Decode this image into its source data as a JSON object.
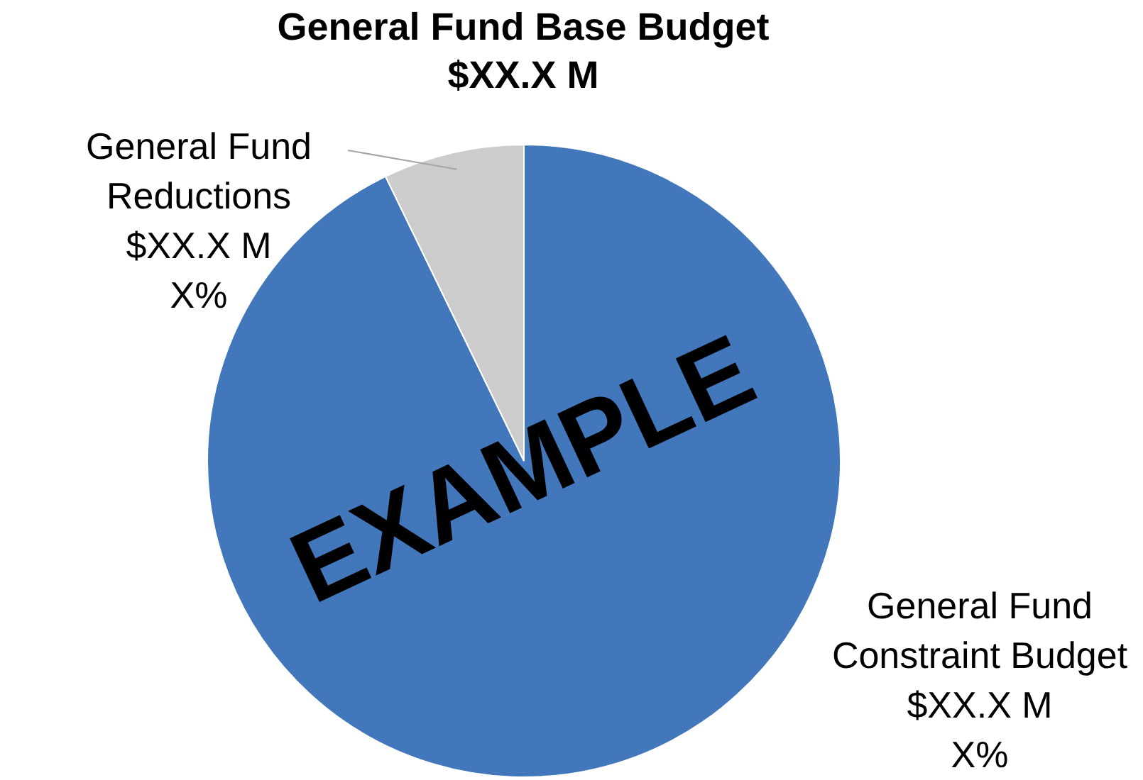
{
  "chart_data": {
    "type": "pie",
    "title": [
      "General Fund Base Budget",
      "$XX.X M"
    ],
    "categories": [
      "General Fund Constraint Budget",
      "General Fund Reductions"
    ],
    "values": [
      92.8,
      7.2
    ],
    "colors": [
      "#4278bb",
      "#cccccc"
    ],
    "value_labels": [
      "$XX.X M\nX%",
      "$XX.X M\nX%"
    ],
    "annotations": [
      "EXAMPLE"
    ]
  }
}
